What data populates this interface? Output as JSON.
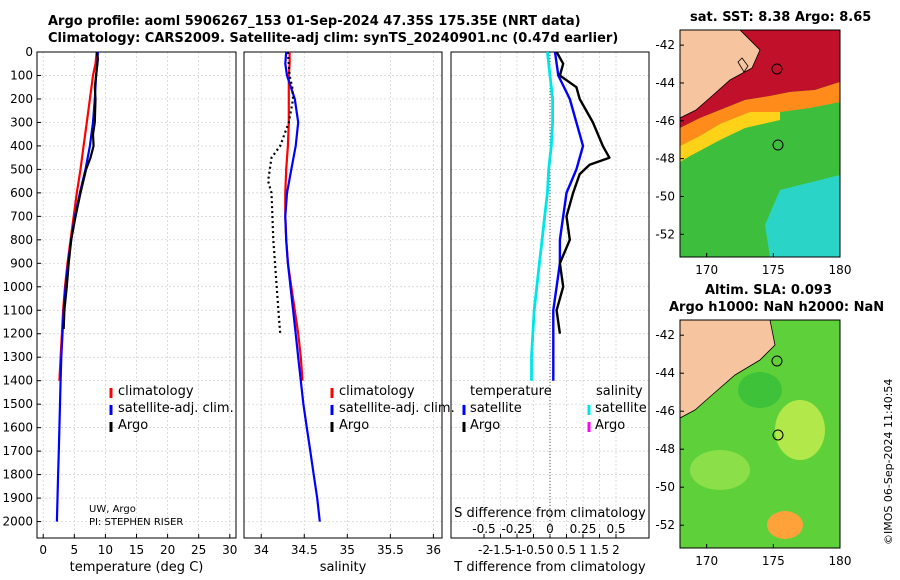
{
  "header": {
    "title_line1": "Argo profile: aoml 5906267_153 01-Sep-2024 47.35S 175.35E (NRT data)",
    "title_line2": "Climatology: CARS2009. Satellite-adj clim: synTS_20240901.nc (0.47d earlier)"
  },
  "sst_map": {
    "title": "sat. SST: 8.38 Argo: 8.65",
    "xticks": [
      "170",
      "175",
      "180"
    ],
    "yticks": [
      "-42",
      "-44",
      "-46",
      "-48",
      "-50",
      "-52"
    ]
  },
  "sla_map": {
    "title_line1": "Altim. SLA: 0.093",
    "title_line2": "Argo h1000: NaN h2000: NaN",
    "xticks": [
      "170",
      "175",
      "180"
    ],
    "yticks": [
      "-42",
      "-44",
      "-46",
      "-48",
      "-50",
      "-52"
    ]
  },
  "credit": "©IMOS 06-Sep-2024 11:40:54",
  "colors": {
    "climatology": "#ff0000",
    "satellite_adj": "#0000ff",
    "argo": "#000000",
    "satellite_t": "#0000ff",
    "satellite_s": "#00e5e5",
    "argo_s": "#ff00ff",
    "land": "#f7c4a0"
  },
  "chart_data": [
    {
      "type": "line",
      "name": "temperature-panel",
      "xlabel": "temperature (deg C)",
      "ylabel": "",
      "xlim": [
        -1,
        31
      ],
      "ylim": [
        0,
        2070
      ],
      "xticks": [
        0,
        5,
        10,
        15,
        20,
        25,
        30
      ],
      "yticks": [
        0,
        100,
        200,
        300,
        400,
        500,
        600,
        700,
        800,
        900,
        1000,
        1100,
        1200,
        1300,
        1400,
        1500,
        1600,
        1700,
        1800,
        1900,
        2000
      ],
      "grid": true,
      "legend": [
        "climatology",
        "satellite-adj. clim.",
        "Argo"
      ],
      "annotation": [
        "UW, Argo",
        "PI: STEPHEN RISER"
      ],
      "series": [
        {
          "name": "climatology",
          "depth": [
            0,
            50,
            100,
            200,
            300,
            400,
            500,
            600,
            700,
            800,
            900,
            1000,
            1100,
            1200,
            1300,
            1400
          ],
          "values": [
            8.6,
            8.4,
            8.0,
            7.5,
            7.0,
            6.5,
            6.0,
            5.4,
            4.9,
            4.4,
            3.9,
            3.5,
            3.2,
            3.0,
            2.8,
            2.6
          ]
        },
        {
          "name": "satellite-adj. clim.",
          "depth": [
            0,
            50,
            100,
            200,
            300,
            400,
            500,
            600,
            700,
            800,
            900,
            1000,
            1100,
            1200,
            1300,
            1400,
            1500,
            1600,
            1700,
            1800,
            1900,
            2000
          ],
          "values": [
            8.8,
            8.7,
            8.5,
            8.3,
            8.0,
            7.5,
            6.8,
            5.9,
            5.1,
            4.5,
            4.0,
            3.6,
            3.3,
            3.1,
            2.9,
            2.8,
            2.7,
            2.6,
            2.5,
            2.4,
            2.3,
            2.2
          ]
        },
        {
          "name": "Argo",
          "depth": [
            0,
            30,
            100,
            150,
            200,
            300,
            350,
            400,
            450,
            500,
            600,
            700,
            800,
            900,
            1000,
            1100,
            1180
          ],
          "values": [
            8.6,
            8.8,
            8.5,
            8.3,
            8.4,
            8.3,
            8.0,
            8.1,
            7.6,
            6.9,
            6.0,
            5.2,
            4.5,
            4.1,
            3.8,
            3.4,
            3.3
          ]
        }
      ]
    },
    {
      "type": "line",
      "name": "salinity-panel",
      "xlabel": "salinity",
      "ylabel": "",
      "xlim": [
        33.8,
        36.1
      ],
      "ylim": [
        0,
        2070
      ],
      "xticks": [
        34,
        34.5,
        35,
        35.5,
        36
      ],
      "grid": true,
      "legend": [
        "climatology",
        "satellite-adj. clim.",
        "Argo"
      ],
      "series": [
        {
          "name": "climatology",
          "depth": [
            0,
            50,
            100,
            200,
            300,
            400,
            500,
            600,
            700,
            800,
            900,
            1000,
            1100,
            1200,
            1300,
            1400
          ],
          "values": [
            34.33,
            34.33,
            34.32,
            34.32,
            34.32,
            34.31,
            34.29,
            34.28,
            34.28,
            34.29,
            34.31,
            34.35,
            34.39,
            34.43,
            34.46,
            34.48
          ]
        },
        {
          "name": "satellite-adj. clim.",
          "depth": [
            0,
            50,
            100,
            200,
            300,
            400,
            500,
            600,
            700,
            800,
            900,
            1000,
            1100,
            1200,
            1300,
            1400,
            1500,
            1600,
            1700,
            1800,
            1900,
            2000
          ],
          "values": [
            34.29,
            34.28,
            34.3,
            34.39,
            34.43,
            34.4,
            34.35,
            34.3,
            34.28,
            34.29,
            34.31,
            34.34,
            34.37,
            34.4,
            34.43,
            34.46,
            34.49,
            34.53,
            34.57,
            34.61,
            34.65,
            34.68
          ]
        },
        {
          "name": "Argo",
          "depth": [
            0,
            100,
            150,
            200,
            300,
            400,
            450,
            500,
            550,
            600,
            700,
            800,
            900,
            1000,
            1100,
            1200
          ],
          "values": [
            34.31,
            34.33,
            34.36,
            34.37,
            34.32,
            34.22,
            34.12,
            34.1,
            34.08,
            34.12,
            34.13,
            34.14,
            34.16,
            34.18,
            34.2,
            34.22
          ]
        }
      ]
    },
    {
      "type": "line",
      "name": "difference-panel",
      "xlabel": "T difference from climatology",
      "xlabel_top": "S difference from climatology",
      "xlim": [
        -3,
        3
      ],
      "ylim": [
        0,
        2070
      ],
      "xticks": [
        -2,
        -1.5,
        -1,
        -0.5,
        0,
        0.5,
        1,
        1.5,
        2
      ],
      "xtick_labels": [
        "-2",
        "-1.5",
        "-1",
        "-0.5",
        "0",
        "0.5",
        "1",
        "1.5",
        "2"
      ],
      "s_ticks": [
        "-0.5",
        "-0.25",
        "0",
        "0.25",
        "0.5"
      ],
      "grid": true,
      "legend_titles": [
        "temperature",
        "salinity"
      ],
      "legend_temperature": [
        "satellite",
        "Argo"
      ],
      "legend_salinity": [
        "satellite",
        "Argo"
      ],
      "series": [
        {
          "name": "satellite T diff",
          "depth": [
            0,
            100,
            200,
            300,
            400,
            500,
            600,
            700,
            800,
            900,
            1000,
            1100,
            1200,
            1300,
            1400
          ],
          "values": [
            0.15,
            0.25,
            0.6,
            0.8,
            1.0,
            0.8,
            0.5,
            0.4,
            0.3,
            0.3,
            0.2,
            0.1,
            0.1,
            0.1,
            0.1
          ]
        },
        {
          "name": "Argo T diff",
          "depth": [
            0,
            50,
            100,
            150,
            200,
            300,
            400,
            450,
            480,
            520,
            600,
            700,
            800,
            900,
            1000,
            1100,
            1200
          ],
          "values": [
            0.2,
            0.4,
            0.3,
            0.8,
            0.9,
            1.3,
            1.6,
            1.8,
            1.2,
            0.9,
            0.7,
            0.5,
            0.6,
            0.3,
            0.4,
            0.2,
            0.3
          ]
        },
        {
          "name": "satellite S diff",
          "depth": [
            0,
            100,
            200,
            300,
            400,
            500,
            600,
            700,
            800,
            900,
            1000,
            1100,
            1200,
            1300,
            1400
          ],
          "values": [
            -0.02,
            0.0,
            0.02,
            0.02,
            0.01,
            -0.01,
            -0.02,
            -0.04,
            -0.06,
            -0.08,
            -0.1,
            -0.12,
            -0.13,
            -0.14,
            -0.14
          ]
        }
      ]
    }
  ]
}
